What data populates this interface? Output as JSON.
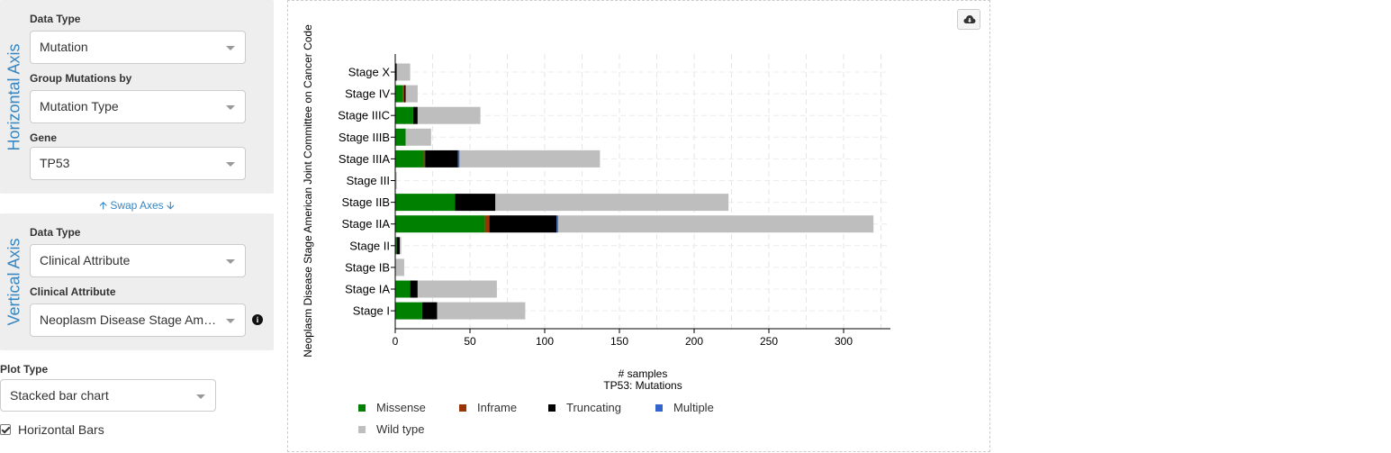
{
  "horizontal_axis": {
    "title": "Horizontal Axis",
    "data_type_label": "Data Type",
    "data_type_value": "Mutation",
    "group_label": "Group Mutations by",
    "group_value": "Mutation Type",
    "gene_label": "Gene",
    "gene_value": "TP53"
  },
  "swap_axes": "Swap Axes",
  "vertical_axis": {
    "title": "Vertical Axis",
    "data_type_label": "Data Type",
    "data_type_value": "Clinical Attribute",
    "attribute_label": "Clinical Attribute",
    "attribute_value": "Neoplasm Disease Stage American Joint Committee on Cancer Code"
  },
  "plot_type": {
    "label": "Plot Type",
    "value": "Stacked bar chart"
  },
  "horizontal_bars": {
    "label": "Horizontal Bars",
    "checked": true
  },
  "icons": {
    "download": "cloud-download-icon",
    "info": "info-circle-icon",
    "swap_up": "arrow-up-icon",
    "swap_down": "arrow-down-icon"
  },
  "chart_data": {
    "type": "bar",
    "orientation": "horizontal",
    "stacked": true,
    "title": "",
    "xlabel": "# samples",
    "xlabel2": "TP53: Mutations",
    "ylabel": "Neoplasm Disease Stage American Joint Committee on Cancer Code",
    "xlim": [
      0,
      330
    ],
    "xticks": [
      0,
      50,
      100,
      150,
      200,
      250,
      300
    ],
    "grid": true,
    "legend_position": "bottom",
    "categories": [
      "Stage X",
      "Stage IV",
      "Stage IIIC",
      "Stage IIIB",
      "Stage IIIA",
      "Stage III",
      "Stage IIB",
      "Stage IIA",
      "Stage II",
      "Stage IB",
      "Stage IA",
      "Stage I"
    ],
    "series": [
      {
        "name": "Missense",
        "color": "#008000",
        "values": [
          0,
          5,
          12,
          7,
          19,
          0,
          40,
          60,
          1,
          0,
          10,
          18
        ]
      },
      {
        "name": "Inframe",
        "color": "#993404",
        "values": [
          0,
          1,
          0,
          0,
          1,
          0,
          0,
          3,
          0,
          0,
          0,
          0
        ]
      },
      {
        "name": "Truncating",
        "color": "#000000",
        "values": [
          1,
          1,
          3,
          0,
          22,
          0,
          27,
          45,
          2,
          0,
          5,
          10
        ]
      },
      {
        "name": "Multiple",
        "color": "#3366cc",
        "values": [
          0,
          0,
          0,
          0,
          1,
          0,
          0,
          1,
          0,
          0,
          0,
          0
        ]
      },
      {
        "name": "Wild type",
        "color": "#bebebe",
        "values": [
          9,
          8,
          42,
          17,
          94,
          1,
          156,
          211,
          1,
          6,
          53,
          59
        ]
      }
    ]
  }
}
